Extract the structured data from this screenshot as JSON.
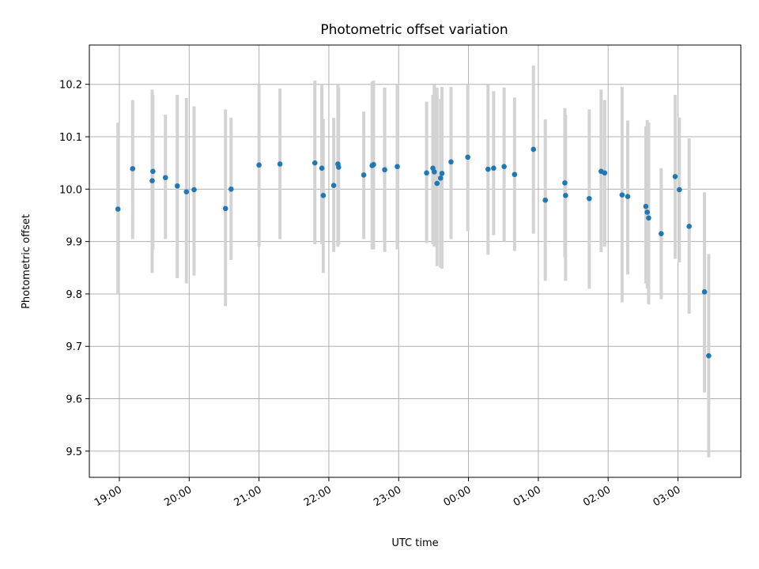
{
  "chart_data": {
    "type": "scatter",
    "title": "Photometric offset variation",
    "xlabel": "UTC time",
    "ylabel": "Photometric offset",
    "grid": true,
    "x_unit": "hours since 19:00 UTC",
    "xlim": [
      -0.43,
      8.9
    ],
    "ylim": [
      9.45,
      10.275
    ],
    "x_ticks": [
      {
        "value": 0,
        "label": "19:00"
      },
      {
        "value": 1,
        "label": "20:00"
      },
      {
        "value": 2,
        "label": "21:00"
      },
      {
        "value": 3,
        "label": "22:00"
      },
      {
        "value": 4,
        "label": "23:00"
      },
      {
        "value": 5,
        "label": "00:00"
      },
      {
        "value": 6,
        "label": "01:00"
      },
      {
        "value": 7,
        "label": "02:00"
      },
      {
        "value": 8,
        "label": "03:00"
      }
    ],
    "y_ticks": [
      {
        "value": 9.5,
        "label": "9.5"
      },
      {
        "value": 9.6,
        "label": "9.6"
      },
      {
        "value": 9.7,
        "label": "9.7"
      },
      {
        "value": 9.8,
        "label": "9.8"
      },
      {
        "value": 9.9,
        "label": "9.9"
      },
      {
        "value": 10.0,
        "label": "10.0"
      },
      {
        "value": 10.1,
        "label": "10.1"
      },
      {
        "value": 10.2,
        "label": "10.2"
      }
    ],
    "series": [
      {
        "name": "offset",
        "x": [
          -0.02,
          0.19,
          0.47,
          0.48,
          0.66,
          0.83,
          0.96,
          1.07,
          1.52,
          1.6,
          2.0,
          2.3,
          2.8,
          2.9,
          2.92,
          3.07,
          3.13,
          3.14,
          3.5,
          3.62,
          3.64,
          3.8,
          3.98,
          4.4,
          4.49,
          4.51,
          4.55,
          4.6,
          4.62,
          4.75,
          4.99,
          5.28,
          5.36,
          5.51,
          5.66,
          5.93,
          6.1,
          6.38,
          6.39,
          6.73,
          6.9,
          6.95,
          7.2,
          7.28,
          7.54,
          7.56,
          7.58,
          7.76,
          7.96,
          8.02,
          8.16,
          8.38,
          8.44
        ],
        "y": [
          9.962,
          10.039,
          10.016,
          10.034,
          10.022,
          10.006,
          9.995,
          9.999,
          9.963,
          10.0,
          10.046,
          10.048,
          10.05,
          10.04,
          9.988,
          10.007,
          10.048,
          10.042,
          10.027,
          10.045,
          10.047,
          10.037,
          10.043,
          10.031,
          10.04,
          10.033,
          10.011,
          10.021,
          10.03,
          10.052,
          10.061,
          10.038,
          10.04,
          10.043,
          10.028,
          10.076,
          9.979,
          10.012,
          9.988,
          9.982,
          10.034,
          10.031,
          9.989,
          9.986,
          9.967,
          9.956,
          9.945,
          9.915,
          10.024,
          9.999,
          9.929,
          9.804,
          9.682
        ],
        "err_low": [
          9.8,
          9.905,
          9.84,
          9.885,
          9.905,
          9.83,
          9.82,
          9.835,
          9.777,
          9.865,
          9.89,
          9.905,
          9.895,
          9.895,
          9.84,
          9.88,
          9.89,
          9.895,
          9.905,
          9.885,
          9.885,
          9.88,
          9.885,
          9.897,
          9.895,
          9.89,
          9.853,
          9.85,
          9.848,
          9.905,
          9.92,
          9.875,
          9.912,
          9.9,
          9.882,
          9.915,
          9.825,
          9.87,
          9.825,
          9.81,
          9.88,
          9.89,
          9.784,
          9.837,
          9.82,
          9.81,
          9.78,
          9.79,
          9.867,
          9.86,
          9.762,
          9.612,
          9.488
        ],
        "err_high": [
          10.127,
          10.17,
          10.19,
          10.18,
          10.142,
          10.18,
          10.174,
          10.158,
          10.152,
          10.136,
          10.2,
          10.192,
          10.207,
          10.2,
          10.134,
          10.136,
          10.2,
          10.194,
          10.148,
          10.205,
          10.207,
          10.194,
          10.2,
          10.167,
          10.18,
          10.2,
          10.194,
          10.172,
          10.195,
          10.195,
          10.2,
          10.2,
          10.187,
          10.194,
          10.175,
          10.236,
          10.133,
          10.155,
          10.142,
          10.152,
          10.19,
          10.17,
          10.195,
          10.131,
          10.12,
          10.132,
          10.127,
          10.04,
          10.18,
          10.137,
          10.097,
          9.994,
          9.876
        ]
      }
    ]
  }
}
